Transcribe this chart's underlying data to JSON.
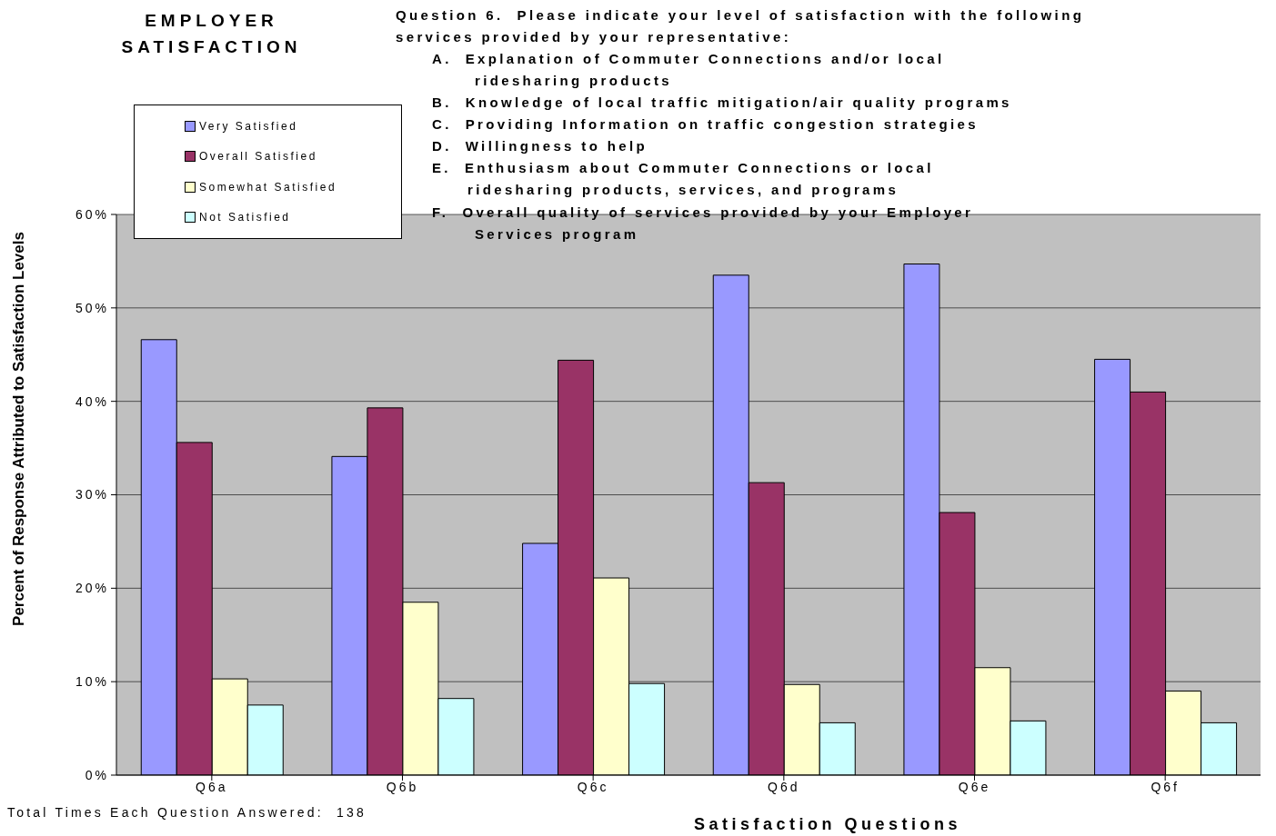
{
  "chart_data": {
    "type": "bar",
    "title": "EMPLOYER SATISFACTION",
    "xlabel": "Satisfaction Questions",
    "ylabel": "Percent of Response Attributed to Satisfaction Levels",
    "annotations": [
      "Question 6.  Please indicate your level of satisfaction with the following",
      "services provided by your representative:",
      "A.  Explanation of Commuter Connections and/or local",
      "ridesharing products",
      "B.  Knowledge of local traffic mitigation/air quality programs",
      "C.  Providing Information on traffic congestion strategies",
      "D.  Willingness to help",
      "E.  Enthusiasm about Commuter Connections or local",
      "ridesharing products, services, and programs",
      "F.  Overall quality of services provided by your Employer",
      "Services program",
      "Total Times Each Question Answered:  138"
    ],
    "categories": [
      "Q6a",
      "Q6b",
      "Q6c",
      "Q6d",
      "Q6e",
      "Q6f"
    ],
    "series": [
      {
        "name": "Very Satisfied",
        "color": "#9999ff",
        "values": [
          46.6,
          34.1,
          24.8,
          53.5,
          54.7,
          44.5
        ]
      },
      {
        "name": "Overall Satisfied",
        "color": "#993366",
        "values": [
          35.6,
          39.3,
          44.4,
          31.3,
          28.1,
          41.0
        ]
      },
      {
        "name": "Somewhat Satisfied",
        "color": "#ffffcc",
        "values": [
          10.3,
          18.5,
          21.1,
          9.7,
          11.5,
          9.0
        ]
      },
      {
        "name": "Not Satisfied",
        "color": "#ccffff",
        "values": [
          7.5,
          8.2,
          9.8,
          5.6,
          5.8,
          5.6
        ]
      }
    ],
    "ylim": [
      0,
      60
    ],
    "yticks": [
      {
        "value": 0,
        "label": "0%"
      },
      {
        "value": 10,
        "label": "10%"
      },
      {
        "value": 20,
        "label": "20%"
      },
      {
        "value": 30,
        "label": "30%"
      },
      {
        "value": 40,
        "label": "40%"
      },
      {
        "value": 50,
        "label": "50%"
      },
      {
        "value": 60,
        "label": "60%"
      }
    ],
    "grid": "y",
    "legend": "top left"
  }
}
